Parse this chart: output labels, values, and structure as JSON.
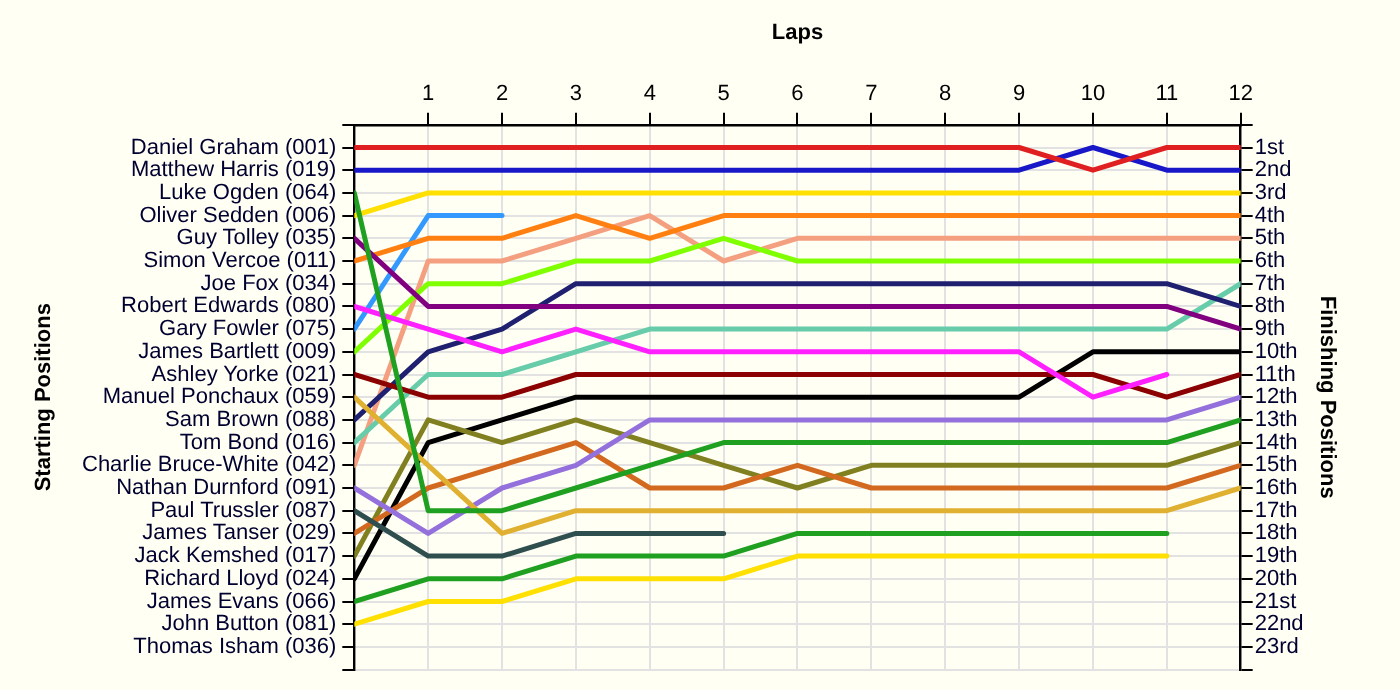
{
  "chart_data": {
    "type": "line",
    "xlabel": "Laps",
    "ylabel": "Finishing Positions",
    "x": [
      0,
      1,
      2,
      3,
      4,
      5,
      6,
      7,
      8,
      9,
      10,
      11,
      12
    ],
    "xlim": [
      0,
      12
    ],
    "xticks": [
      1,
      2,
      3,
      4,
      5,
      6,
      7,
      8,
      9,
      10,
      11,
      12
    ],
    "ylim": [
      24,
      0
    ],
    "yticks": [
      {
        "value": 0,
        "label": null
      },
      {
        "value": 1,
        "label": "1st"
      },
      {
        "value": 2,
        "label": "2nd"
      },
      {
        "value": 3,
        "label": "3rd"
      },
      {
        "value": 4,
        "label": "4th"
      },
      {
        "value": 5,
        "label": "5th"
      },
      {
        "value": 6,
        "label": "6th"
      },
      {
        "value": 7,
        "label": "7th"
      },
      {
        "value": 8,
        "label": "8th"
      },
      {
        "value": 9,
        "label": "9th"
      },
      {
        "value": 10,
        "label": "10th"
      },
      {
        "value": 11,
        "label": "11th"
      },
      {
        "value": 12,
        "label": "12th"
      },
      {
        "value": 13,
        "label": "13th"
      },
      {
        "value": 14,
        "label": "14th"
      },
      {
        "value": 15,
        "label": "15th"
      },
      {
        "value": 16,
        "label": "16th"
      },
      {
        "value": 17,
        "label": "17th"
      },
      {
        "value": 18,
        "label": "18th"
      },
      {
        "value": 19,
        "label": "19th"
      },
      {
        "value": 20,
        "label": "20th"
      },
      {
        "value": 21,
        "label": "21st"
      },
      {
        "value": 22,
        "label": "22nd"
      },
      {
        "value": 23,
        "label": "23rd"
      },
      {
        "value": 24,
        "label": null
      }
    ],
    "grid": true,
    "marker": "none",
    "line_style": "solid",
    "annotations": [
      "Starting Positions",
      "Daniel Graham (001)",
      "Matthew Harris (019)",
      "Luke Ogden (064)",
      "Oliver Sedden (006)",
      "Guy Tolley (035)",
      "Simon Vercoe (011)",
      "Joe Fox (034)",
      "Robert Edwards (080)",
      "Gary Fowler (075)",
      "James Bartlett (009)",
      "Ashley Yorke (021)",
      "Manuel Ponchaux (059)",
      "Sam Brown (088)",
      "Tom Bond (016)",
      "Charlie Bruce-White (042)",
      "Nathan Durnford (091)",
      "Paul Trussler (087)",
      "James Tanser (029)",
      "Jack Kemshed (017)",
      "Richard Lloyd (024)",
      "James Evans (066)",
      "John Button (081)",
      "Thomas Isham (036)"
    ],
    "series": [
      {
        "color": "#e02020",
        "values": [
          1,
          1,
          1,
          1,
          1,
          1,
          1,
          1,
          1,
          1,
          2,
          1,
          1
        ]
      },
      {
        "color": "#1818c8",
        "values": [
          2,
          2,
          2,
          2,
          2,
          2,
          2,
          2,
          2,
          2,
          1,
          2,
          2
        ]
      },
      {
        "color": "#20a020",
        "values": [
          3,
          17,
          17,
          16,
          15,
          14,
          14,
          14,
          14,
          14,
          14,
          14,
          13
        ]
      },
      {
        "color": "#ffe000",
        "values": [
          4,
          3,
          3,
          3,
          3,
          3,
          3,
          3,
          3,
          3,
          3,
          3,
          3
        ]
      },
      {
        "color": "#800080",
        "values": [
          5,
          8,
          8,
          8,
          8,
          8,
          8,
          8,
          8,
          8,
          8,
          8,
          9
        ]
      },
      {
        "color": "#ff8010",
        "values": [
          6,
          5,
          5,
          4,
          5,
          4,
          4,
          4,
          4,
          4,
          4,
          4,
          4
        ]
      },
      {
        "color": "#ff20ff",
        "values": [
          8,
          9,
          10,
          9,
          10,
          10,
          10,
          10,
          10,
          10,
          12,
          11,
          null
        ]
      },
      {
        "color": "#3399ff",
        "values": [
          9,
          4,
          4,
          null,
          null,
          null,
          null,
          null,
          null,
          null,
          null,
          null,
          null
        ]
      },
      {
        "color": "#80ff00",
        "values": [
          10,
          7,
          7,
          6,
          6,
          5,
          6,
          6,
          6,
          6,
          6,
          6,
          6
        ]
      },
      {
        "color": "#8b0000",
        "values": [
          11,
          12,
          12,
          11,
          11,
          11,
          11,
          11,
          11,
          11,
          11,
          12,
          11
        ]
      },
      {
        "color": "#e0b030",
        "values": [
          12,
          15,
          18,
          17,
          17,
          17,
          17,
          17,
          17,
          17,
          17,
          17,
          16
        ]
      },
      {
        "color": "#202070",
        "values": [
          13,
          10,
          9,
          7,
          7,
          7,
          7,
          7,
          7,
          7,
          7,
          7,
          8
        ]
      },
      {
        "color": "#66ccaa",
        "values": [
          14,
          11,
          11,
          10,
          9,
          9,
          9,
          9,
          9,
          9,
          9,
          9,
          7
        ]
      },
      {
        "color": "#f4a080",
        "values": [
          15,
          6,
          6,
          5,
          4,
          6,
          5,
          5,
          5,
          5,
          5,
          5,
          5
        ]
      },
      {
        "color": "#9370db",
        "values": [
          16,
          18,
          16,
          15,
          13,
          13,
          13,
          13,
          13,
          13,
          13,
          13,
          12
        ]
      },
      {
        "color": "#2f4f4f",
        "values": [
          17,
          19,
          19,
          18,
          18,
          18,
          null,
          null,
          null,
          null,
          null,
          null,
          null
        ]
      },
      {
        "color": "#d2691e",
        "values": [
          18,
          16,
          15,
          14,
          16,
          16,
          15,
          16,
          16,
          16,
          16,
          16,
          15
        ]
      },
      {
        "color": "#808020",
        "values": [
          19,
          13,
          14,
          13,
          14,
          15,
          16,
          15,
          15,
          15,
          15,
          15,
          14
        ]
      },
      {
        "color": "#000000",
        "values": [
          20,
          14,
          13,
          12,
          12,
          12,
          12,
          12,
          12,
          12,
          10,
          10,
          10
        ]
      },
      {
        "color": "#20a020",
        "values": [
          21,
          20,
          20,
          19,
          19,
          19,
          18,
          18,
          18,
          18,
          18,
          18,
          null
        ]
      },
      {
        "color": "#ffe000",
        "values": [
          22,
          21,
          21,
          20,
          20,
          20,
          19,
          19,
          19,
          19,
          19,
          19,
          null
        ]
      }
    ]
  }
}
